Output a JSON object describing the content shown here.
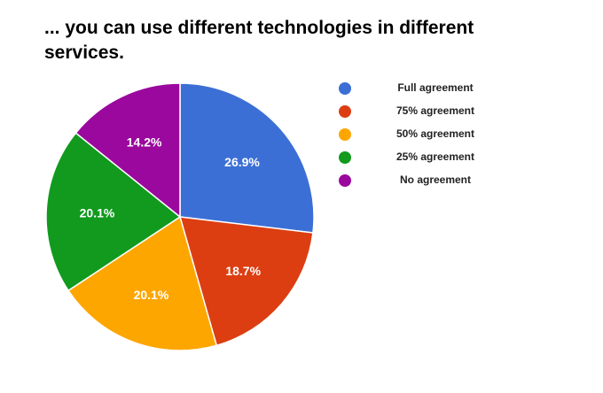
{
  "chart_data": {
    "type": "pie",
    "title": "... you can use different technologies in different services.",
    "categories": [
      "Full agreement",
      "75% agreement",
      "50% agreement",
      "25% agreement",
      "No agreement"
    ],
    "values": [
      26.9,
      18.7,
      20.1,
      20.1,
      14.2
    ],
    "value_labels": [
      "26.9%",
      "18.7%",
      "20.1%",
      "20.1%",
      "14.2%"
    ],
    "colors": [
      "#3c6fd6",
      "#dc3e12",
      "#fda600",
      "#119a1e",
      "#9a089d"
    ],
    "legend_position": "right"
  }
}
